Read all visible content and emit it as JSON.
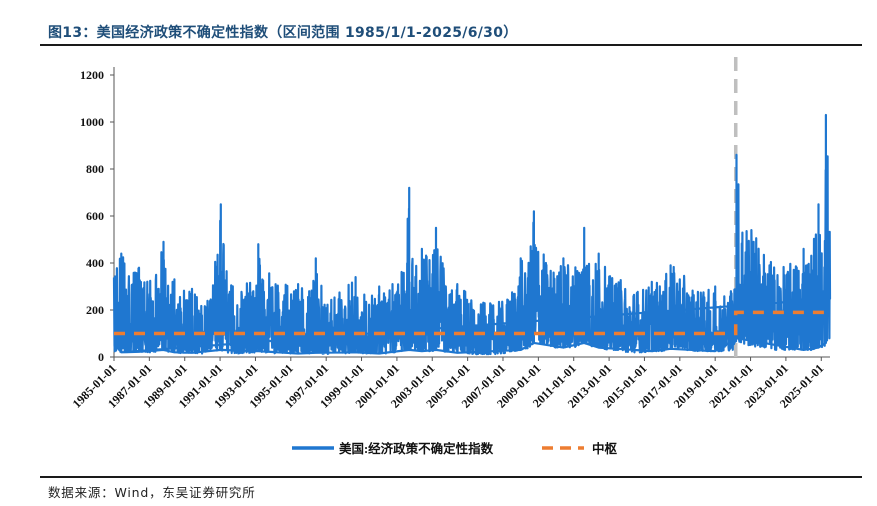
{
  "figure": {
    "title": "图13：美国经济政策不确定性指数（区间范围 1985/1/1-2025/6/30）",
    "source": "数据来源：Wind，东吴证券研究所"
  },
  "colors": {
    "series_main": "#1f77d0",
    "series_median": "#ed7d31",
    "divider": "#bfbfbf",
    "title": "#1f4e79"
  },
  "chart_data": {
    "type": "line",
    "ylim": [
      0,
      1200
    ],
    "yticks": [
      0,
      200,
      400,
      600,
      800,
      1000,
      1200
    ],
    "xlim": [
      "1985-01-01",
      "2025-06-30"
    ],
    "xticks": [
      "1985-01-01",
      "1987-01-01",
      "1989-01-01",
      "1991-01-01",
      "1993-01-01",
      "1995-01-01",
      "1997-01-01",
      "1999-01-01",
      "2001-01-01",
      "2003-01-01",
      "2005-01-01",
      "2007-01-01",
      "2009-01-01",
      "2011-01-01",
      "2013-01-01",
      "2015-01-01",
      "2017-01-01",
      "2019-01-01",
      "2021-01-01",
      "2023-01-01",
      "2025-01-01"
    ],
    "legend_position": "bottom",
    "grid": false,
    "regime_divider": "2020-03-01",
    "series": [
      {
        "name": "美国:经济政策不确定性指数",
        "style": "solid",
        "envelope_note": "daily index; values approximate upper/lower envelope by period",
        "x": [
          "1985-01-01",
          "1985-02-01",
          "1985-06-01",
          "1986-01-01",
          "1986-06-01",
          "1987-01-01",
          "1987-06-01",
          "1987-10-20",
          "1988-01-01",
          "1988-06-01",
          "1989-01-01",
          "1989-06-01",
          "1990-01-01",
          "1990-08-01",
          "1991-01-17",
          "1991-06-01",
          "1992-01-01",
          "1992-06-01",
          "1993-01-01",
          "1993-03-01",
          "1993-06-01",
          "1994-01-01",
          "1994-06-01",
          "1995-01-01",
          "1995-06-01",
          "1996-01-01",
          "1996-06-01",
          "1997-01-01",
          "1997-06-01",
          "1998-01-01",
          "1998-09-01",
          "1999-01-01",
          "1999-06-01",
          "2000-01-01",
          "2000-06-01",
          "2001-01-01",
          "2001-09-11",
          "2002-01-01",
          "2002-06-01",
          "2003-01-01",
          "2003-03-20",
          "2004-01-01",
          "2004-06-01",
          "2005-01-01",
          "2005-06-01",
          "2006-01-01",
          "2006-06-01",
          "2007-01-01",
          "2007-06-01",
          "2008-01-01",
          "2008-06-01",
          "2008-10-01",
          "2009-01-01",
          "2009-06-01",
          "2010-01-01",
          "2010-06-01",
          "2011-01-01",
          "2011-08-05",
          "2012-01-01",
          "2012-06-01",
          "2013-01-01",
          "2013-10-01",
          "2014-01-01",
          "2014-06-01",
          "2015-01-01",
          "2015-06-01",
          "2016-01-01",
          "2016-06-24",
          "2016-11-09",
          "2017-06-01",
          "2018-01-01",
          "2018-06-01",
          "2019-01-01",
          "2019-06-01",
          "2020-01-01",
          "2020-03-01",
          "2020-03-16",
          "2020-06-01",
          "2020-09-01",
          "2021-01-01",
          "2021-06-01",
          "2022-01-01",
          "2022-06-01",
          "2023-01-01",
          "2023-06-01",
          "2024-01-01",
          "2024-06-01",
          "2024-11-05",
          "2025-01-01",
          "2025-03-01",
          "2025-04-07",
          "2025-05-01",
          "2025-06-30"
        ],
        "y_high": [
          590,
          380,
          440,
          360,
          380,
          330,
          360,
          490,
          310,
          330,
          280,
          290,
          240,
          300,
          650,
          330,
          290,
          320,
          330,
          480,
          420,
          350,
          330,
          290,
          310,
          280,
          420,
          250,
          270,
          300,
          340,
          260,
          280,
          300,
          290,
          330,
          720,
          380,
          460,
          440,
          550,
          290,
          310,
          270,
          240,
          230,
          230,
          240,
          270,
          420,
          380,
          620,
          530,
          420,
          380,
          420,
          390,
          550,
          380,
          440,
          350,
          330,
          310,
          300,
          300,
          320,
          320,
          390,
          380,
          330,
          290,
          280,
          300,
          280,
          310,
          380,
          860,
          700,
          640,
          560,
          520,
          430,
          400,
          380,
          420,
          460,
          460,
          650,
          520,
          440,
          1030,
          980,
          910
        ],
        "y_low": [
          20,
          25,
          20,
          25,
          22,
          20,
          20,
          30,
          18,
          20,
          15,
          18,
          15,
          20,
          30,
          18,
          15,
          18,
          18,
          25,
          20,
          15,
          18,
          15,
          15,
          15,
          18,
          12,
          15,
          15,
          20,
          15,
          15,
          15,
          15,
          20,
          30,
          22,
          25,
          25,
          30,
          18,
          18,
          15,
          12,
          12,
          12,
          15,
          20,
          30,
          35,
          60,
          60,
          50,
          40,
          40,
          40,
          60,
          45,
          40,
          30,
          30,
          20,
          20,
          20,
          25,
          25,
          35,
          40,
          30,
          25,
          25,
          25,
          25,
          30,
          60,
          80,
          60,
          50,
          50,
          40,
          40,
          30,
          30,
          30,
          30,
          30,
          40,
          40,
          40,
          60,
          70,
          60
        ]
      },
      {
        "name": "中枢",
        "style": "dashed",
        "x": [
          "1985-01-01",
          "2020-03-01",
          "2020-03-01",
          "2025-06-30"
        ],
        "y": [
          100,
          100,
          190,
          190
        ]
      }
    ]
  }
}
